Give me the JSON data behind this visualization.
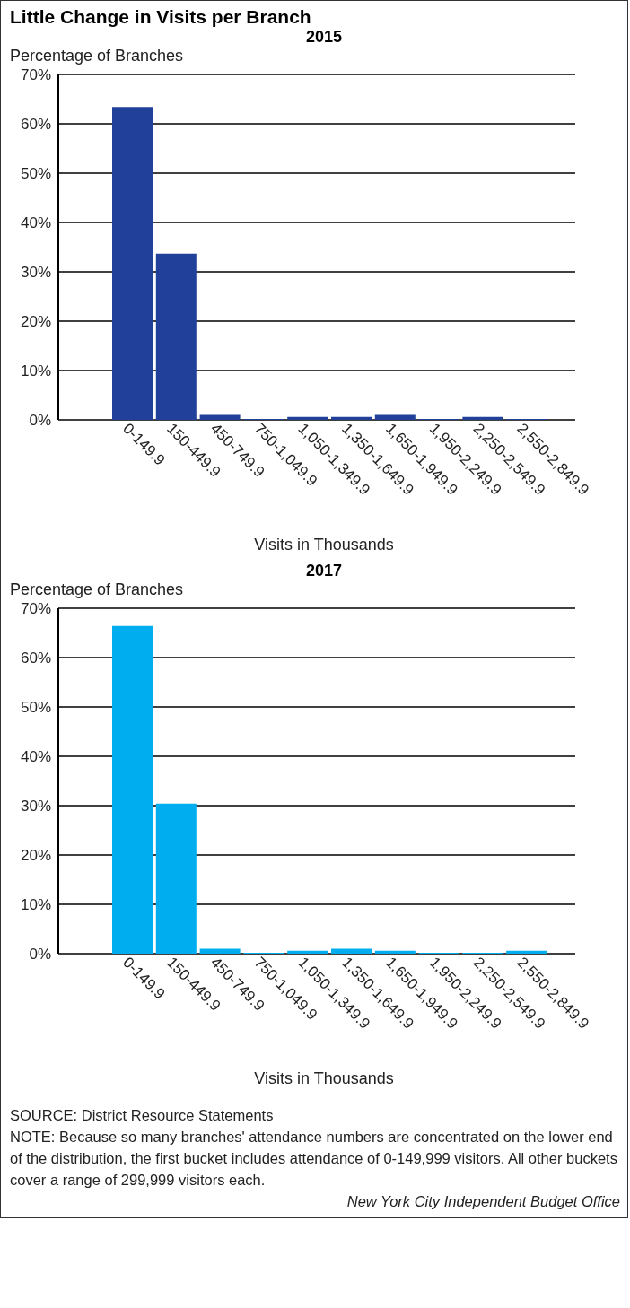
{
  "chart_data": [
    {
      "type": "bar",
      "title": "Little Change in Visits per Branch",
      "subtitle": "2015",
      "ylabel": "Percentage of Branches",
      "xlabel": "Visits in Thousands",
      "categories": [
        "0-149.9",
        "150-449.9",
        "450-749.9",
        "750-1,049.9",
        "1,050-1,349.9",
        "1,350-1,649.9",
        "1,650-1,949.9",
        "1,950-2,249.9",
        "2,250-2,549.9",
        "2,550-2,849.9"
      ],
      "values": [
        63.4,
        33.7,
        1.0,
        0.2,
        0.6,
        0.6,
        1.0,
        0.2,
        0.6,
        0.2
      ],
      "color": "#21409a",
      "ylim": [
        0,
        70
      ],
      "yticks": [
        {
          "value": 0,
          "label": "0%"
        },
        {
          "value": 10,
          "label": "10%"
        },
        {
          "value": 20,
          "label": "20%"
        },
        {
          "value": 30,
          "label": "30%"
        },
        {
          "value": 40,
          "label": "40%"
        },
        {
          "value": 50,
          "label": "50%"
        },
        {
          "value": 60,
          "label": "60%"
        },
        {
          "value": 70,
          "label": "70%"
        }
      ],
      "grid": "y"
    },
    {
      "type": "bar",
      "title": "2017",
      "ylabel": "Percentage of Branches",
      "xlabel": "Visits in Thousands",
      "categories": [
        "0-149.9",
        "150-449.9",
        "450-749.9",
        "750-1,049.9",
        "1,050-1,349.9",
        "1,350-1,649.9",
        "1,650-1,949.9",
        "1,950-2,249.9",
        "2,250-2,549.9",
        "2,550-2,849.9"
      ],
      "values": [
        66.4,
        30.4,
        1.0,
        0.2,
        0.6,
        1.0,
        0.6,
        0.2,
        0.2,
        0.6
      ],
      "color": "#00adee",
      "ylim": [
        0,
        70
      ],
      "yticks": [
        {
          "value": 0,
          "label": "0%"
        },
        {
          "value": 10,
          "label": "10%"
        },
        {
          "value": 20,
          "label": "20%"
        },
        {
          "value": 30,
          "label": "30%"
        },
        {
          "value": 40,
          "label": "40%"
        },
        {
          "value": 50,
          "label": "50%"
        },
        {
          "value": 60,
          "label": "60%"
        },
        {
          "value": 70,
          "label": "70%"
        }
      ],
      "grid": "y",
      "annotations": [
        "SOURCE: District Resource Statements",
        "NOTE: Because so many branches' attendance numbers are concentrated on the lower end of the distribution, the first bucket includes attendance of 0-149,999 visitors. All other buckets cover a range of 299,999 visitors each.",
        "New York City Independent Budget Office"
      ]
    }
  ]
}
